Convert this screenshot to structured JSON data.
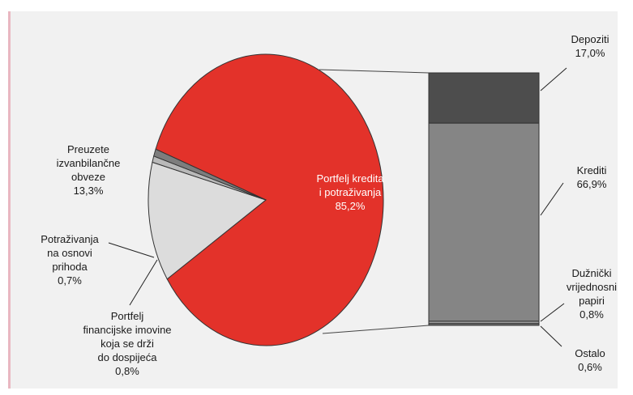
{
  "chart_data": {
    "type": "pie",
    "pie": {
      "slices": [
        {
          "label_lines": [
            "Portfelj kredita",
            "i potraživanja",
            "85,2%"
          ],
          "value": 85.2,
          "color": "#e3322a"
        },
        {
          "label_lines": [
            "Preuzete",
            "izvanbilančne",
            "obveze",
            "13,3%"
          ],
          "value": 13.3,
          "color": "#dcdcdc"
        },
        {
          "label_lines": [
            "Potraživanja",
            "na osnovi",
            "prihoda",
            "0,7%"
          ],
          "value": 0.7,
          "color": "#b9b9b9"
        },
        {
          "label_lines": [
            "Portfelj",
            "financijske imovine",
            "koja se drži",
            "do dospijeća",
            "0,8%"
          ],
          "value": 0.8,
          "color": "#7d7d7d"
        }
      ]
    },
    "bar": {
      "segments": [
        {
          "label_lines": [
            "Depoziti",
            "17,0%"
          ],
          "value": 17.0,
          "color": "#4d4d4d"
        },
        {
          "label_lines": [
            "Krediti",
            "66,9%"
          ],
          "value": 66.9,
          "color": "#858585"
        },
        {
          "label_lines": [
            "Dužnički",
            "vrijednosni",
            "papiri",
            "0,8%"
          ],
          "value": 0.8,
          "color": "#9a9a9a"
        },
        {
          "label_lines": [
            "Ostalo",
            "0,6%"
          ],
          "value": 0.6,
          "color": "#6e6e6e"
        }
      ]
    }
  }
}
